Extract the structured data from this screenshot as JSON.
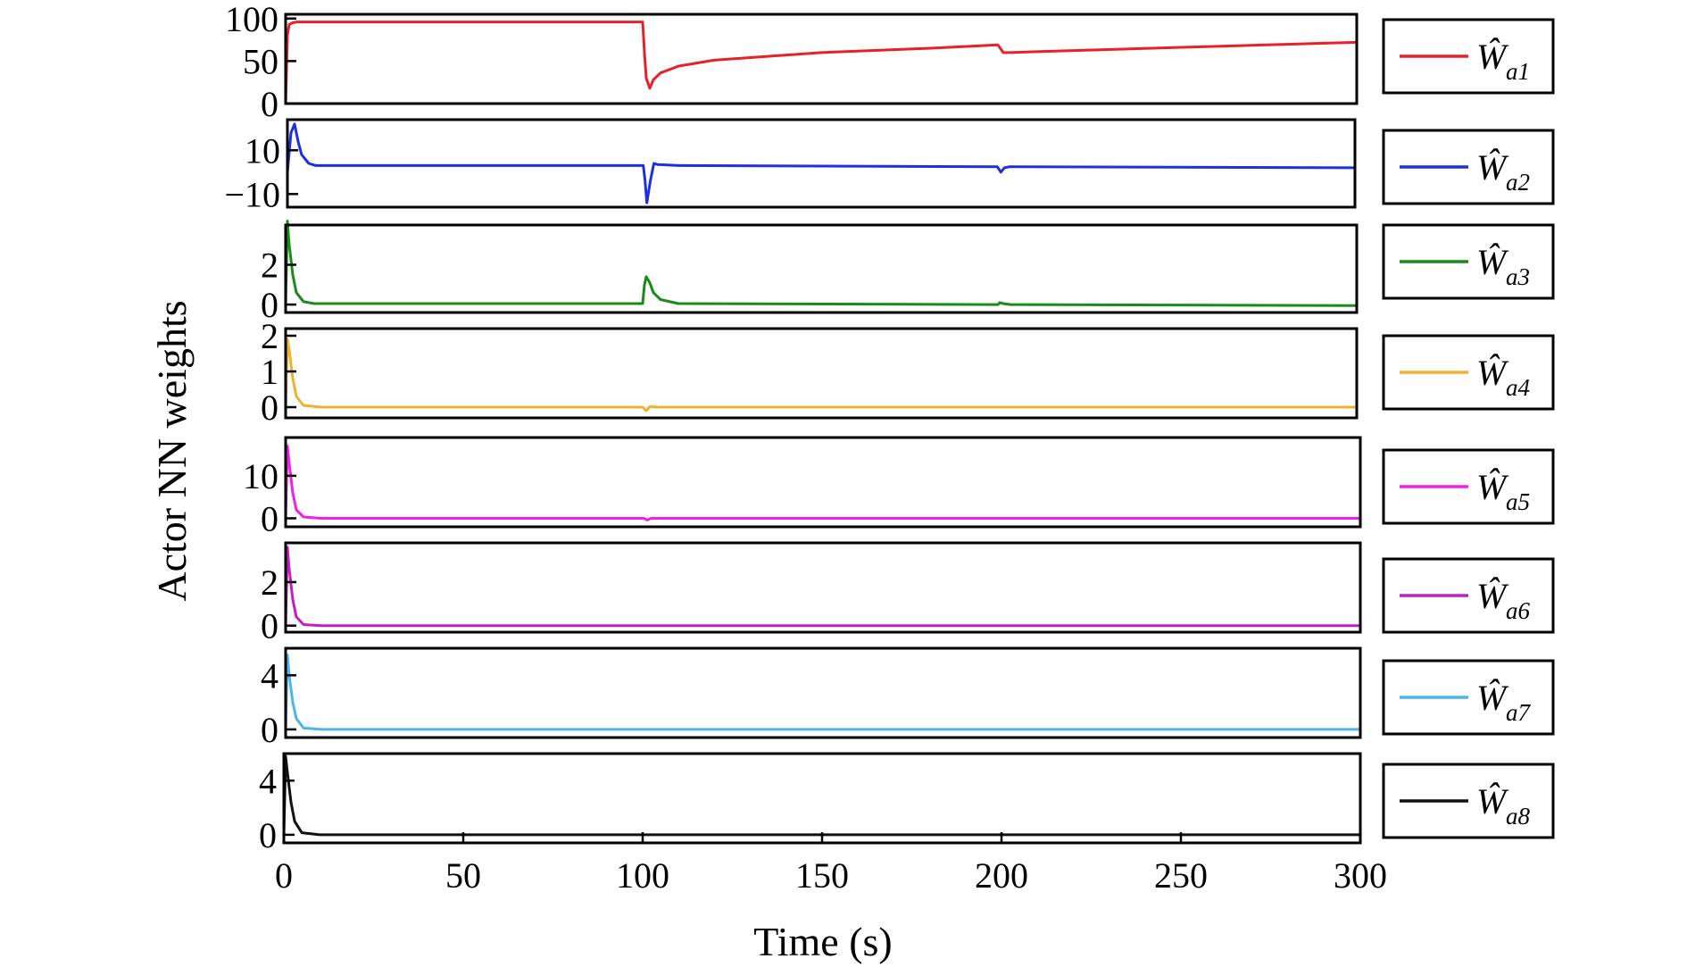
{
  "chart_data": {
    "type": "line",
    "xlabel": "Time (s)",
    "ylabel": "Actor NN weights",
    "xlim": [
      0,
      300
    ],
    "x_ticks": [
      "0",
      "50",
      "100",
      "150",
      "200",
      "250",
      "300"
    ],
    "grid": false,
    "legend": "right of each panel",
    "panels": [
      {
        "name": "Ŵa1",
        "legend_symbol": "Ŵ",
        "legend_sub": "a1",
        "color": "#e8202a",
        "ylim": [
          0,
          105
        ],
        "y_ticks": [
          {
            "v": 0,
            "label": "0"
          },
          {
            "v": 50,
            "label": "50"
          },
          {
            "v": 100,
            "label": "100"
          }
        ],
        "x": [
          0,
          0.5,
          1,
          2,
          3,
          5,
          10,
          50,
          100,
          100.5,
          101,
          102,
          103,
          105,
          110,
          120,
          150,
          180,
          199.5,
          200.5,
          201,
          203,
          210,
          250,
          300
        ],
        "y": [
          0,
          80,
          93,
          95,
          96,
          96,
          96,
          96,
          96,
          60,
          30,
          18,
          28,
          36,
          44,
          51,
          60,
          65,
          69,
          63,
          60,
          60,
          61,
          66,
          72
        ]
      },
      {
        "name": "Ŵa2",
        "legend_symbol": "Ŵ",
        "legend_sub": "a2",
        "color": "#1f2fe0",
        "ylim": [
          -16,
          24
        ],
        "y_ticks": [
          {
            "v": -10,
            "label": "−10"
          },
          {
            "v": 10,
            "label": "10"
          }
        ],
        "x": [
          0,
          1,
          2,
          3,
          4,
          6,
          8,
          12,
          50,
          100,
          100.5,
          101,
          102,
          103,
          104,
          110,
          199.5,
          200.5,
          201.5,
          203,
          300
        ],
        "y": [
          0,
          18,
          22,
          14,
          8,
          4,
          3,
          3,
          3,
          3,
          -4,
          -14,
          -4,
          4,
          3.5,
          3,
          2.5,
          0,
          2,
          2.5,
          2
        ]
      },
      {
        "name": "Ŵa3",
        "legend_symbol": "Ŵ",
        "legend_sub": "a3",
        "color": "#1a8a1a",
        "ylim": [
          -0.4,
          4.0
        ],
        "y_ticks": [
          {
            "v": 0,
            "label": "0"
          },
          {
            "v": 2,
            "label": "2"
          }
        ],
        "x": [
          0,
          0.5,
          1,
          2,
          3,
          5,
          8,
          100,
          100.5,
          101,
          102,
          103,
          105,
          110,
          199.5,
          200,
          201,
          203,
          300
        ],
        "y": [
          0,
          4.2,
          3.0,
          1.5,
          0.6,
          0.15,
          0.05,
          0.05,
          1.0,
          1.4,
          1.1,
          0.6,
          0.25,
          0.05,
          0.0,
          0.1,
          0.05,
          0.0,
          -0.05
        ]
      },
      {
        "name": "Ŵa4",
        "legend_symbol": "Ŵ",
        "legend_sub": "a4",
        "color": "#f0b030",
        "ylim": [
          -0.3,
          2.2
        ],
        "y_ticks": [
          {
            "v": 0,
            "label": "0"
          },
          {
            "v": 1,
            "label": "1"
          },
          {
            "v": 2,
            "label": "2"
          }
        ],
        "x": [
          0,
          0.5,
          1,
          2,
          3,
          5,
          10,
          100,
          101,
          102,
          104,
          300
        ],
        "y": [
          0,
          1.9,
          1.6,
          0.8,
          0.3,
          0.05,
          0,
          0,
          -0.1,
          0.02,
          0,
          0
        ]
      },
      {
        "name": "Ŵa5",
        "legend_symbol": "Ŵ",
        "legend_sub": "a5",
        "color": "#f020e8",
        "ylim": [
          -2,
          19
        ],
        "y_ticks": [
          {
            "v": 0,
            "label": "0"
          },
          {
            "v": 10,
            "label": "10"
          }
        ],
        "x": [
          0,
          0.5,
          1,
          2,
          3,
          5,
          10,
          100,
          101,
          102,
          300
        ],
        "y": [
          0,
          17,
          13,
          6,
          2,
          0.3,
          0,
          0,
          -0.4,
          0,
          0
        ]
      },
      {
        "name": "Ŵa6",
        "legend_symbol": "Ŵ",
        "legend_sub": "a6",
        "color": "#c020c0",
        "ylim": [
          -0.3,
          3.8
        ],
        "y_ticks": [
          {
            "v": 0,
            "label": "0"
          },
          {
            "v": 2,
            "label": "2"
          }
        ],
        "x": [
          0,
          0.5,
          1,
          2,
          3,
          5,
          10,
          300
        ],
        "y": [
          0,
          3.6,
          2.6,
          1.2,
          0.4,
          0.05,
          0,
          0
        ]
      },
      {
        "name": "Ŵa7",
        "legend_symbol": "Ŵ",
        "legend_sub": "a7",
        "color": "#4fb4ea",
        "ylim": [
          -0.6,
          6.0
        ],
        "y_ticks": [
          {
            "v": 0,
            "label": "0"
          },
          {
            "v": 4,
            "label": "4"
          }
        ],
        "x": [
          0,
          0.5,
          1,
          2,
          3,
          5,
          10,
          300
        ],
        "y": [
          0,
          5.5,
          4.0,
          2.0,
          0.8,
          0.1,
          0,
          0
        ]
      },
      {
        "name": "Ŵa8",
        "legend_symbol": "Ŵ",
        "legend_sub": "a8",
        "color": "#111111",
        "ylim": [
          -0.6,
          6.0
        ],
        "y_ticks": [
          {
            "v": 0,
            "label": "0"
          },
          {
            "v": 4,
            "label": "4"
          }
        ],
        "x": [
          0,
          0.5,
          1,
          2,
          3,
          5,
          10,
          300
        ],
        "y": [
          0,
          5.8,
          4.6,
          2.4,
          1.0,
          0.15,
          0,
          0
        ]
      }
    ]
  }
}
